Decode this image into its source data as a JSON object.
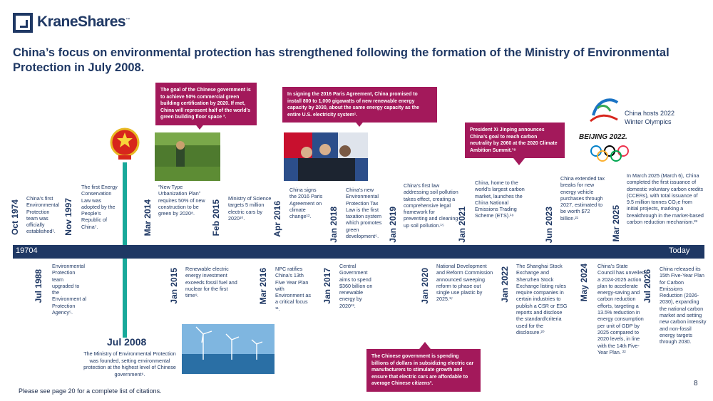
{
  "brand": {
    "name": "KraneShares",
    "tm": "™"
  },
  "headline": "China’s focus on environmental protection has strengthened following the formation of the Ministry of Environmental Protection in July 2008.",
  "timeline_bar": {
    "start": "19704",
    "end": "Today"
  },
  "key_event": {
    "date": "Jul 2008",
    "text": "The Ministry of Environmental Protection was founded, setting environmental protection at the highest level of Chinese government⁶."
  },
  "above": [
    {
      "date": "Oct 1974",
      "text": "China’s first Environmental Protection team was officially established¹."
    },
    {
      "date": "Nov 1997",
      "text": "The first Energy Conservation Law was adopted by the People’s Republic of China⁷."
    },
    {
      "date": "Mar 2014",
      "text": "“New Type Urbanization Plan” requires 50% of new construction to be green by 2020⁸."
    },
    {
      "date": "Feb 2015",
      "text": "Ministry of Science targets 5 million electric cars by 2020¹⁰."
    },
    {
      "date": "Apr 2016",
      "text": "China signs the 2016 Paris Agreement on climate change¹²."
    },
    {
      "date": "Jan 2018",
      "text": "China’s new Environmental Protection Tax Law is the first taxation system which promotes green development⁵."
    },
    {
      "date": "Jan 2019",
      "text": "China’s first law addressing soil pollution takes effect, creating a comprehensive legal framework for preventing and cleaning up soil pollution.¹⁵"
    },
    {
      "date": "Jan 2021",
      "text": "China, home to the world’s largest carbon market, launches the China National Emissions Trading Scheme (ETS).¹⁹"
    },
    {
      "date": "Jun 2023",
      "text": "China extended tax breaks for new energy vehicle purchases through 2027, estimated to be worth $72 billion.²¹"
    },
    {
      "date": "Mar 2025",
      "text": "In March 2025 (March 6), China completed the first issuance of domestic voluntary carbon credits (CCERs), with total issuance of 9.5 million tonnes CO₂e from initial projects, marking a breakthrough in the market-based carbon reduction mechanism.²³"
    }
  ],
  "below": [
    {
      "date": "Jul 1988",
      "text": "Environmental Protection team upgraded to the Environment al Protection Agency⁵."
    },
    {
      "date": "Jan 2015",
      "text": "Renewable electric energy investment exceeds fossil fuel and nuclear for the first time⁹."
    },
    {
      "date": "Mar 2016",
      "text": "NPC ratifies China’s 13th Five Year Plan with Environment as a critical focus ¹¹."
    },
    {
      "date": "Jan 2017",
      "text": "Central Government aims to spend $360 billion on renewable energy by 2020¹³."
    },
    {
      "date": "Jan 2020",
      "text": "National Development and Reform Commission announced sweeping reform to phase out single use plastic by 2025.¹⁷"
    },
    {
      "date": "Jan 2022",
      "text": "The Shanghai Stock Exchange and Shenzhen Stock Exchange listing rules require companies in certain industries to publish a CSR or ESG reports and disclose the standard/criteria used for the disclosure.²⁰"
    },
    {
      "date": "May 2024",
      "text": "China’s State Council has unveiled a 2024-2025 action plan to accelerate energy-saving and carbon reduction efforts, targeting a 13.5% reduction in energy consumption per unit of GDP by 2025 compared to 2020 levels, in line with the 14th Five-Year Plan. ²²"
    },
    {
      "date": "Jul 2026",
      "text": "China released its 15th Five-Year Plan for Carbon Emissions Reduction (2026-2030), expanding the national carbon market and setting new carbon intensity and non-fossil energy targets through 2030."
    }
  ],
  "callouts": {
    "green_building": "The goal of the Chinese government is to achieve 50% commercial green building certification by 2020. If met, China will represent half of the world’s green building floor space ³.",
    "paris": "In signing the 2016 Paris Agreement, China promised to install 800 to 1,000 gigawatts of new renewable energy capacity by 2030, about the same energy capacity as the entire U.S. electricity system¹.",
    "xi": "President Xi Jinping announces China’s goal to reach carbon neutrality by 2060 at the 2020 Climate Ambition Summit.¹⁸",
    "ev": "The Chinese government is spending billions of dollars in subsidizing electric car manufacturers to stimulate growth and ensure that electric cars are affordable to average Chinese citizens²."
  },
  "olympics": {
    "caption_1": "China hosts 2022",
    "caption_2": "Winter Olympics",
    "logo_text": "BEIJING 2022."
  },
  "footer": "Please see page 20 for a complete list of citations.",
  "page_number": "8",
  "colors": {
    "navy": "#1f3864",
    "magenta": "#a3195b",
    "teal": "#18a99a"
  }
}
